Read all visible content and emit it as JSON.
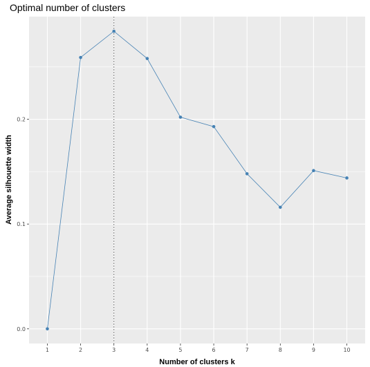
{
  "chart_data": {
    "type": "line",
    "title": "Optimal number of clusters",
    "xlabel": "Number of clusters k",
    "ylabel": "Average silhouette width",
    "x": [
      1,
      2,
      3,
      4,
      5,
      6,
      7,
      8,
      9,
      10
    ],
    "x_tick_labels": [
      "1",
      "2",
      "3",
      "4",
      "5",
      "6",
      "7",
      "8",
      "9",
      "10"
    ],
    "series": [
      {
        "values": [
          0.0,
          0.259,
          0.284,
          0.258,
          0.202,
          0.193,
          0.148,
          0.116,
          0.151,
          0.144
        ]
      }
    ],
    "optimal_k": 3,
    "xlim": [
      0.45,
      10.55
    ],
    "ylim": [
      -0.014,
      0.298
    ],
    "y_ticks": [
      0.0,
      0.1,
      0.2
    ],
    "y_tick_labels": [
      "0.0",
      "0.1",
      "0.2"
    ],
    "grid": true,
    "colors": {
      "line": "#4682b4",
      "point": "#4682b4",
      "panel": "#ebebeb",
      "grid": "#ffffff",
      "vline": "#808080"
    }
  }
}
